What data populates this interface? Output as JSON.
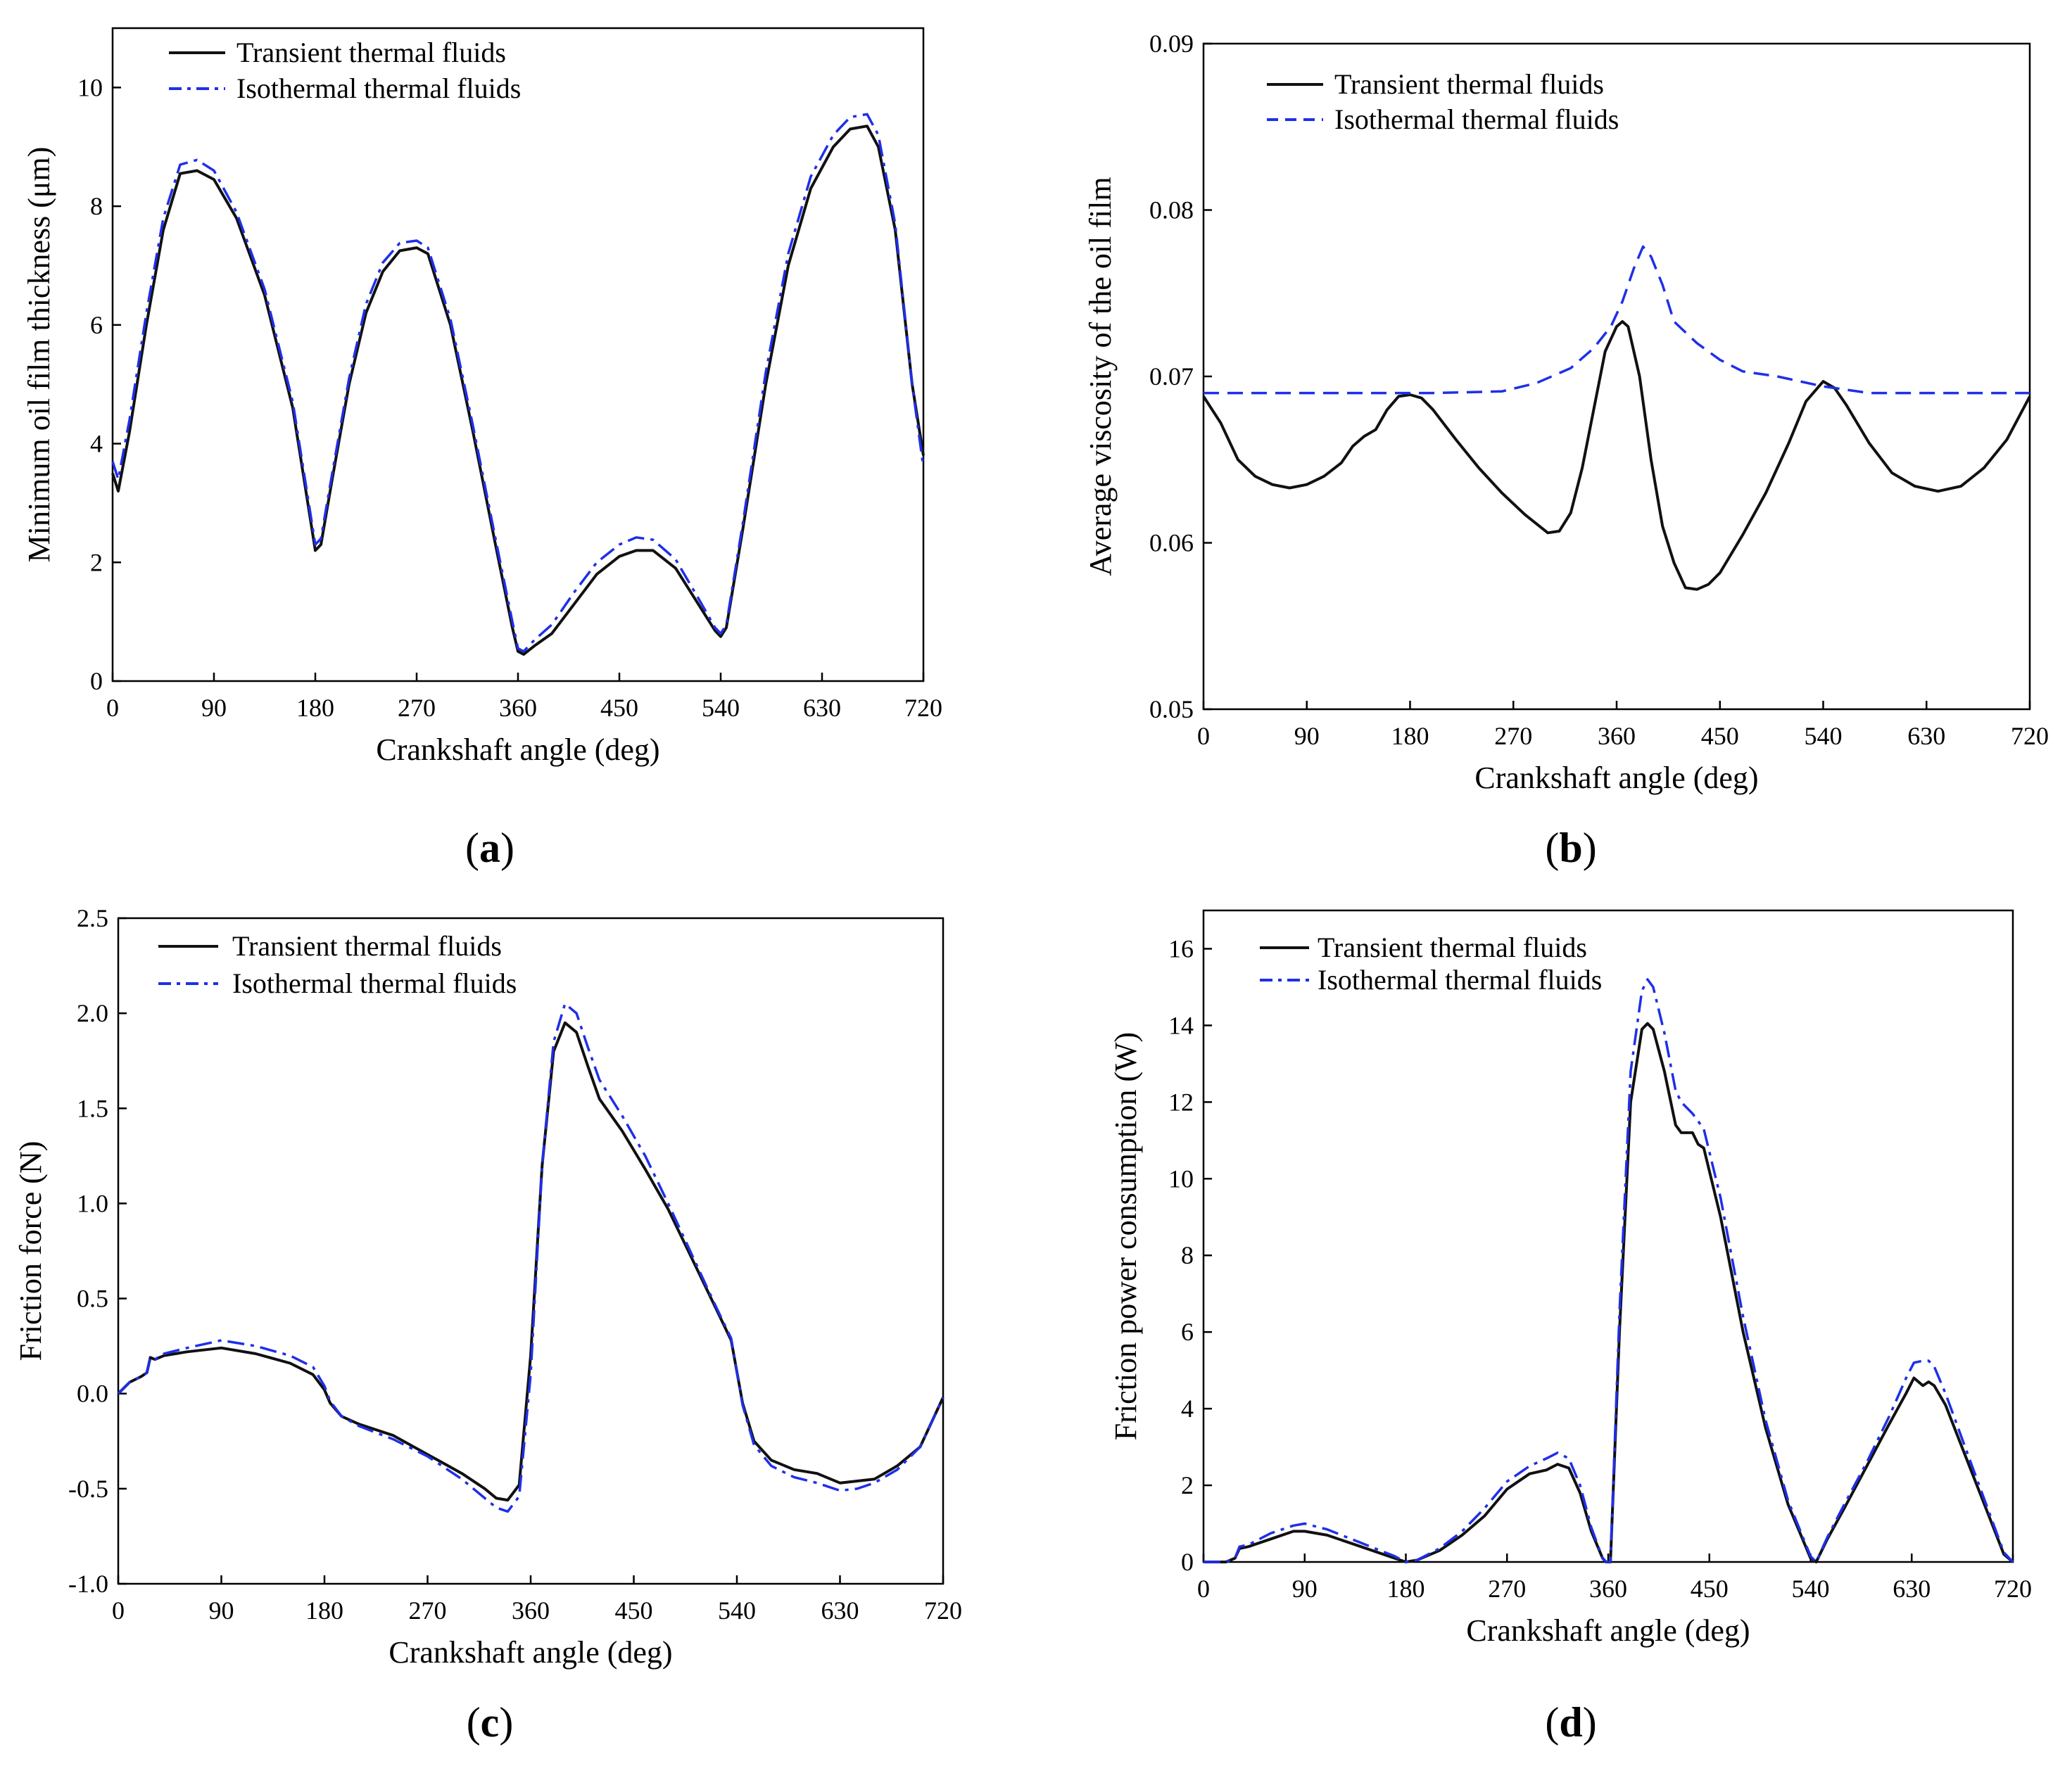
{
  "colors": {
    "transient": "#111111",
    "isothermal": "#1f2fe8",
    "axis": "#000000"
  },
  "chart_data": [
    {
      "id": "a",
      "type": "line",
      "panel_label": "a",
      "xlabel": "Crankshaft angle (deg)",
      "ylabel": "Minimum oil film thickness (μm)",
      "xlim": [
        0,
        720
      ],
      "ylim": [
        0,
        11
      ],
      "xticks": [
        0,
        90,
        180,
        270,
        360,
        450,
        540,
        630,
        720
      ],
      "yticks": [
        0,
        2,
        4,
        6,
        8,
        10
      ],
      "ytick_labels": [
        "0",
        "2",
        "4",
        "6",
        "8",
        "10"
      ],
      "legend": "top-left",
      "series": [
        {
          "name": "Transient thermal fluids",
          "style": "solid",
          "x": [
            0,
            5,
            15,
            30,
            45,
            60,
            75,
            90,
            110,
            135,
            160,
            175,
            180,
            185,
            195,
            210,
            225,
            240,
            255,
            270,
            280,
            300,
            320,
            340,
            355,
            360,
            365,
            375,
            390,
            410,
            430,
            450,
            465,
            480,
            500,
            520,
            535,
            540,
            545,
            560,
            580,
            600,
            620,
            640,
            655,
            670,
            680,
            695,
            710,
            720
          ],
          "y": [
            3.5,
            3.2,
            4.2,
            6.0,
            7.6,
            8.55,
            8.6,
            8.45,
            7.8,
            6.5,
            4.6,
            2.8,
            2.2,
            2.3,
            3.4,
            5.0,
            6.2,
            6.9,
            7.25,
            7.3,
            7.2,
            6.0,
            4.2,
            2.3,
            0.9,
            0.5,
            0.45,
            0.6,
            0.8,
            1.3,
            1.8,
            2.1,
            2.2,
            2.2,
            1.9,
            1.3,
            0.85,
            0.75,
            0.9,
            2.6,
            5.0,
            7.0,
            8.3,
            9.0,
            9.3,
            9.35,
            9.0,
            7.6,
            5.0,
            3.8
          ]
        },
        {
          "name": "Isothermal thermal fluids",
          "style": "dashdot",
          "x": [
            0,
            5,
            15,
            30,
            45,
            60,
            75,
            90,
            110,
            135,
            160,
            175,
            180,
            185,
            195,
            210,
            225,
            240,
            255,
            270,
            280,
            300,
            320,
            340,
            355,
            360,
            365,
            375,
            390,
            410,
            430,
            450,
            465,
            480,
            500,
            520,
            535,
            540,
            545,
            560,
            580,
            600,
            620,
            640,
            655,
            670,
            680,
            695,
            710,
            720
          ],
          "y": [
            3.7,
            3.4,
            4.4,
            6.2,
            7.8,
            8.7,
            8.78,
            8.6,
            7.9,
            6.6,
            4.7,
            2.9,
            2.3,
            2.4,
            3.5,
            5.1,
            6.35,
            7.05,
            7.38,
            7.42,
            7.3,
            6.1,
            4.3,
            2.4,
            1.0,
            0.55,
            0.5,
            0.7,
            0.95,
            1.5,
            2.0,
            2.3,
            2.42,
            2.38,
            2.05,
            1.4,
            0.9,
            0.8,
            0.95,
            2.7,
            5.2,
            7.2,
            8.5,
            9.2,
            9.5,
            9.55,
            9.2,
            7.7,
            5.0,
            3.6
          ]
        }
      ]
    },
    {
      "id": "b",
      "type": "line",
      "panel_label": "b",
      "xlabel": "Crankshaft angle (deg)",
      "ylabel": "Average viscosity of the oil film",
      "xlim": [
        0,
        720
      ],
      "ylim": [
        0.05,
        0.09
      ],
      "xticks": [
        0,
        90,
        180,
        270,
        360,
        450,
        540,
        630,
        720
      ],
      "yticks": [
        0.05,
        0.06,
        0.07,
        0.08,
        0.09
      ],
      "ytick_labels": [
        "0.05",
        "0.06",
        "0.07",
        "0.08",
        "0.09"
      ],
      "legend": "top-left",
      "series": [
        {
          "name": "Transient thermal fluids",
          "style": "solid",
          "x": [
            0,
            15,
            30,
            45,
            60,
            75,
            90,
            105,
            120,
            130,
            140,
            150,
            160,
            170,
            180,
            190,
            200,
            220,
            240,
            260,
            280,
            300,
            310,
            320,
            330,
            340,
            350,
            360,
            365,
            370,
            380,
            390,
            400,
            410,
            420,
            430,
            440,
            450,
            470,
            490,
            510,
            525,
            540,
            550,
            560,
            580,
            600,
            620,
            640,
            660,
            680,
            700,
            720
          ],
          "y": [
            0.0688,
            0.0672,
            0.065,
            0.064,
            0.0635,
            0.0633,
            0.0635,
            0.064,
            0.0648,
            0.0658,
            0.0664,
            0.0668,
            0.068,
            0.0688,
            0.0689,
            0.0687,
            0.068,
            0.0662,
            0.0645,
            0.063,
            0.0617,
            0.0606,
            0.0607,
            0.0618,
            0.0645,
            0.068,
            0.0715,
            0.073,
            0.0733,
            0.073,
            0.07,
            0.065,
            0.061,
            0.0588,
            0.0573,
            0.0572,
            0.0575,
            0.0582,
            0.0605,
            0.063,
            0.066,
            0.0685,
            0.0697,
            0.0693,
            0.0683,
            0.066,
            0.0642,
            0.0634,
            0.0631,
            0.0634,
            0.0645,
            0.0662,
            0.0688
          ]
        },
        {
          "name": "Isothermal thermal fluids",
          "style": "dashed",
          "x": [
            0,
            100,
            200,
            260,
            290,
            320,
            340,
            355,
            365,
            375,
            383,
            390,
            400,
            410,
            430,
            450,
            470,
            500,
            540,
            580,
            640,
            720
          ],
          "y": [
            0.069,
            0.069,
            0.069,
            0.0691,
            0.0696,
            0.0705,
            0.0717,
            0.073,
            0.0745,
            0.0765,
            0.0778,
            0.0772,
            0.0755,
            0.0733,
            0.072,
            0.071,
            0.0703,
            0.07,
            0.0694,
            0.069,
            0.069,
            0.069
          ]
        }
      ]
    },
    {
      "id": "c",
      "type": "line",
      "panel_label": "c",
      "xlabel": "Crankshaft angle (deg)",
      "ylabel": "Friction force (N)",
      "xlim": [
        0,
        720
      ],
      "ylim": [
        -1.0,
        2.5
      ],
      "xticks": [
        0,
        90,
        180,
        270,
        360,
        450,
        540,
        630,
        720
      ],
      "yticks": [
        -1.0,
        -0.5,
        0.0,
        0.5,
        1.0,
        1.5,
        2.0,
        2.5
      ],
      "ytick_labels": [
        "-1.0",
        "-0.5",
        "0.0",
        "0.5",
        "1.0",
        "1.5",
        "2.0",
        "2.5"
      ],
      "legend": "top-left",
      "series": [
        {
          "name": "Transient thermal fluids",
          "style": "solid",
          "x": [
            0,
            10,
            20,
            25,
            28,
            32,
            40,
            60,
            90,
            120,
            150,
            170,
            180,
            185,
            195,
            210,
            240,
            270,
            300,
            320,
            330,
            340,
            350,
            360,
            370,
            380,
            390,
            400,
            410,
            420,
            440,
            460,
            480,
            500,
            520,
            535,
            545,
            555,
            570,
            590,
            610,
            630,
            645,
            660,
            680,
            700,
            720
          ],
          "y": [
            0.0,
            0.06,
            0.09,
            0.11,
            0.19,
            0.18,
            0.2,
            0.22,
            0.24,
            0.21,
            0.16,
            0.1,
            0.02,
            -0.05,
            -0.12,
            -0.16,
            -0.22,
            -0.32,
            -0.42,
            -0.5,
            -0.55,
            -0.56,
            -0.48,
            0.2,
            1.2,
            1.8,
            1.95,
            1.9,
            1.72,
            1.55,
            1.38,
            1.18,
            0.97,
            0.72,
            0.47,
            0.28,
            -0.05,
            -0.25,
            -0.35,
            -0.4,
            -0.42,
            -0.47,
            -0.46,
            -0.45,
            -0.38,
            -0.28,
            -0.02
          ]
        },
        {
          "name": "Isothermal thermal fluids",
          "style": "dashdot",
          "x": [
            0,
            10,
            20,
            25,
            28,
            32,
            40,
            60,
            90,
            120,
            150,
            170,
            180,
            185,
            195,
            210,
            240,
            270,
            300,
            320,
            330,
            340,
            350,
            360,
            370,
            380,
            390,
            400,
            410,
            420,
            440,
            460,
            480,
            500,
            520,
            535,
            545,
            555,
            570,
            590,
            610,
            630,
            645,
            660,
            680,
            700,
            720
          ],
          "y": [
            0.0,
            0.06,
            0.09,
            0.11,
            0.19,
            0.18,
            0.21,
            0.24,
            0.28,
            0.25,
            0.2,
            0.14,
            0.04,
            -0.04,
            -0.12,
            -0.17,
            -0.24,
            -0.33,
            -0.45,
            -0.55,
            -0.6,
            -0.62,
            -0.54,
            0.1,
            1.2,
            1.85,
            2.05,
            2.0,
            1.82,
            1.65,
            1.46,
            1.25,
            1.0,
            0.74,
            0.48,
            0.29,
            -0.06,
            -0.27,
            -0.38,
            -0.44,
            -0.47,
            -0.51,
            -0.5,
            -0.47,
            -0.4,
            -0.28,
            -0.02
          ]
        }
      ]
    },
    {
      "id": "d",
      "type": "line",
      "panel_label": "d",
      "xlabel": "Crankshaft angle (deg)",
      "ylabel": "Friction power consumption (W)",
      "xlim": [
        0,
        720
      ],
      "ylim": [
        0,
        17
      ],
      "xticks": [
        0,
        90,
        180,
        270,
        360,
        450,
        540,
        630,
        720
      ],
      "yticks": [
        0,
        2,
        4,
        6,
        8,
        10,
        12,
        14,
        16
      ],
      "ytick_labels": [
        "0",
        "2",
        "4",
        "6",
        "8",
        "10",
        "12",
        "14",
        "16"
      ],
      "legend": "top-left",
      "series": [
        {
          "name": "Transient thermal fluids",
          "style": "solid",
          "x": [
            0,
            20,
            28,
            32,
            40,
            60,
            80,
            90,
            110,
            140,
            170,
            180,
            190,
            210,
            230,
            250,
            270,
            290,
            305,
            315,
            325,
            335,
            345,
            355,
            358,
            362,
            370,
            380,
            390,
            395,
            400,
            410,
            420,
            425,
            435,
            440,
            445,
            460,
            480,
            500,
            520,
            540,
            545,
            555,
            570,
            590,
            610,
            625,
            632,
            640,
            645,
            650,
            660,
            680,
            700,
            712,
            720
          ],
          "y": [
            0,
            0,
            0.1,
            0.35,
            0.4,
            0.6,
            0.8,
            0.8,
            0.7,
            0.4,
            0.1,
            0.0,
            0.05,
            0.3,
            0.7,
            1.2,
            1.9,
            2.3,
            2.4,
            2.55,
            2.45,
            1.8,
            0.8,
            0.1,
            0.0,
            0.0,
            6.0,
            12.0,
            13.9,
            14.05,
            13.9,
            12.8,
            11.4,
            11.2,
            11.2,
            10.9,
            10.8,
            9.0,
            6.0,
            3.5,
            1.5,
            0.1,
            0.0,
            0.6,
            1.4,
            2.5,
            3.6,
            4.4,
            4.8,
            4.6,
            4.7,
            4.6,
            4.1,
            2.6,
            1.1,
            0.2,
            0.0
          ]
        },
        {
          "name": "Isothermal thermal fluids",
          "style": "dashdot",
          "x": [
            0,
            20,
            28,
            32,
            40,
            60,
            80,
            90,
            110,
            140,
            170,
            180,
            190,
            210,
            230,
            250,
            270,
            290,
            305,
            315,
            325,
            335,
            345,
            355,
            358,
            362,
            370,
            380,
            390,
            395,
            400,
            410,
            420,
            425,
            435,
            440,
            445,
            460,
            480,
            500,
            520,
            540,
            545,
            555,
            570,
            590,
            610,
            625,
            632,
            640,
            645,
            650,
            660,
            680,
            700,
            712,
            720
          ],
          "y": [
            0,
            0,
            0.1,
            0.4,
            0.45,
            0.75,
            0.95,
            1.0,
            0.85,
            0.5,
            0.15,
            0.0,
            0.05,
            0.35,
            0.8,
            1.4,
            2.1,
            2.5,
            2.7,
            2.85,
            2.7,
            2.0,
            0.9,
            0.1,
            0.0,
            0.0,
            6.5,
            12.8,
            14.9,
            15.2,
            15.0,
            13.8,
            12.3,
            12.0,
            11.7,
            11.5,
            11.3,
            9.5,
            6.4,
            3.7,
            1.6,
            0.15,
            0.0,
            0.65,
            1.5,
            2.6,
            3.8,
            4.8,
            5.2,
            5.25,
            5.25,
            5.1,
            4.4,
            2.8,
            1.2,
            0.25,
            0.0
          ]
        }
      ]
    }
  ]
}
